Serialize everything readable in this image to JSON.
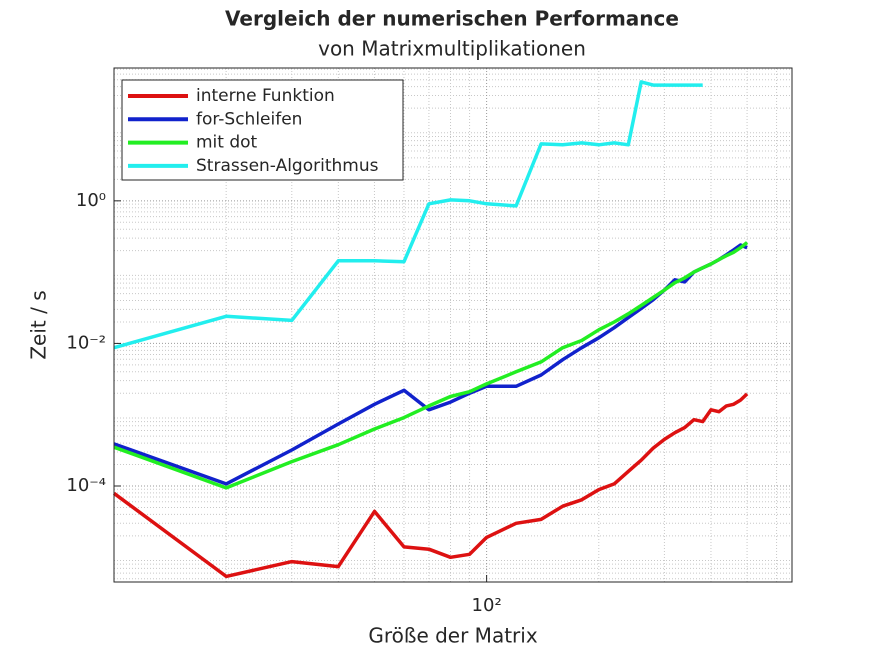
{
  "chart_data": {
    "type": "line",
    "title": "Vergleich der numerischen Performance",
    "subtitle": "von Matrixmultiplikationen",
    "x_label": "Größe der Matrix",
    "y_label": "Zeit / s",
    "x": [
      10,
      20,
      30,
      40,
      50,
      60,
      70,
      80,
      90,
      100,
      120,
      140,
      160,
      180,
      200,
      220,
      240,
      260,
      280,
      300,
      320,
      340,
      360,
      380,
      400,
      420,
      440,
      460,
      480,
      500
    ],
    "series": [
      {
        "name": "interne Funktion",
        "color": "#dd1111",
        "values": [
          7.9e-05,
          5.4e-06,
          8.7e-06,
          7.4e-06,
          4.4e-05,
          1.4e-05,
          1.3e-05,
          1e-05,
          1.1e-05,
          1.9e-05,
          3e-05,
          3.4e-05,
          5.2e-05,
          6.4e-05,
          8.9e-05,
          0.000107,
          0.00016,
          0.00023,
          0.00034,
          0.00045,
          0.00056,
          0.00066,
          0.00085,
          0.0008,
          0.00117,
          0.0011,
          0.00133,
          0.0014,
          0.0016,
          0.00196
        ]
      },
      {
        "name": "for-Schleifen",
        "color": "#1122cc",
        "values": [
          0.00039,
          0.000107,
          0.00032,
          0.00074,
          0.0014,
          0.0022,
          0.00117,
          0.0015,
          0.002,
          0.0025,
          0.0025,
          0.0036,
          0.0059,
          0.0087,
          0.012,
          0.0166,
          0.023,
          0.031,
          0.041,
          0.056,
          0.078,
          0.073,
          0.1,
          0.115,
          0.13,
          0.15,
          0.175,
          0.205,
          0.24,
          0.22
        ]
      },
      {
        "name": "mit dot",
        "color": "#22ee22",
        "values": [
          0.00035,
          9.4e-05,
          0.00022,
          0.00038,
          0.00063,
          0.00091,
          0.00133,
          0.0018,
          0.0021,
          0.0027,
          0.004,
          0.0055,
          0.0087,
          0.011,
          0.0155,
          0.02,
          0.026,
          0.034,
          0.044,
          0.056,
          0.071,
          0.083,
          0.1,
          0.115,
          0.13,
          0.15,
          0.17,
          0.19,
          0.22,
          0.26
        ]
      },
      {
        "name": "Strassen-Algorithmus",
        "color": "#22eeee",
        "values": [
          0.0087,
          0.024,
          0.021,
          0.144,
          0.144,
          0.14,
          0.91,
          1.03,
          1.0,
          0.91,
          0.85,
          6.3,
          6.1,
          6.5,
          6.1,
          6.5,
          6.1,
          46.6,
          42,
          42,
          42,
          42,
          42,
          42,
          null,
          null,
          null,
          null,
          null,
          null
        ]
      }
    ],
    "xlim": [
      10,
      660
    ],
    "ylim": [
      4.5e-06,
      73
    ],
    "xticks": [
      {
        "value": 100,
        "label": "10²"
      }
    ],
    "yticks": [
      {
        "value": 0.0001,
        "label": "10⁻⁴"
      },
      {
        "value": 0.01,
        "label": "10⁻²"
      },
      {
        "value": 1,
        "label": "10⁰"
      }
    ],
    "x_scale": "log",
    "y_scale": "log",
    "grid": true,
    "legend": "upper left"
  }
}
